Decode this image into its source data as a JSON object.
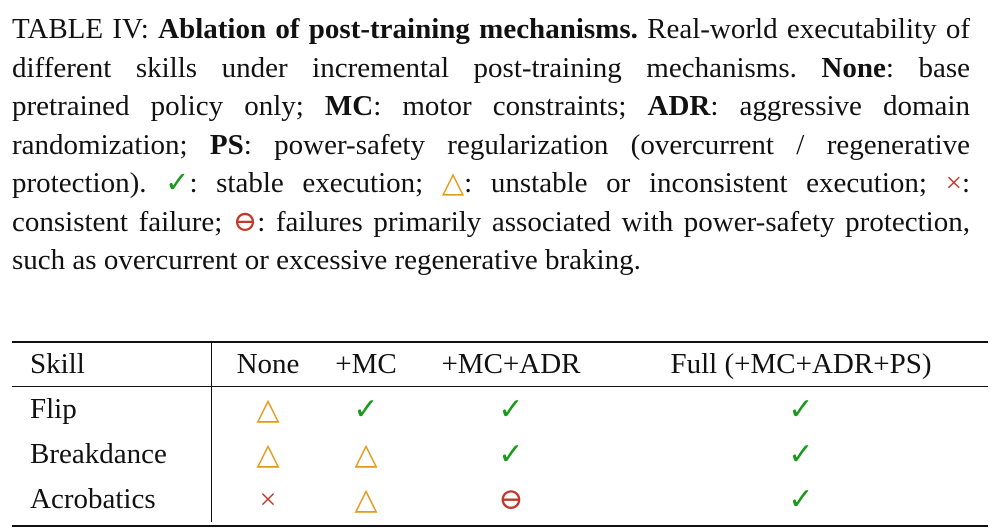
{
  "caption": {
    "label": "TABLE IV:",
    "title": "Ablation of post-training mechanisms.",
    "t1": " Real-world executability of different skills under incremental post-training mechanisms. ",
    "none_abbr": "None",
    "t2": ": base pretrained policy only; ",
    "mc_abbr": "MC",
    "t3": ": motor constraints; ",
    "adr_abbr": "ADR",
    "t4": ": aggressive domain randomization; ",
    "ps_abbr": "PS",
    "t5": ": power-safety regularization (overcurrent / regenerative protection). ",
    "t6": ": stable execution; ",
    "t7": ": unstable or inconsistent execution; ",
    "t8": ": consistent failure; ",
    "t9": ": failures primarily associated with power-safety protection, such as overcurrent or excessive regenerative braking."
  },
  "symbols": {
    "stable": "✓",
    "unstable": "△",
    "failure": "×",
    "power": "⊖"
  },
  "colors": {
    "stable": "#1a9a1a",
    "unstable": "#e39a1a",
    "failure": "#c0392b",
    "power": "#c0392b"
  },
  "table": {
    "headers": [
      "Skill",
      "None",
      "+MC",
      "+MC+ADR",
      "Full (+MC+ADR+PS)"
    ],
    "rows": [
      {
        "skill": "Flip",
        "none": "△",
        "mc": "✓",
        "mcadr": "✓",
        "full": "✓"
      },
      {
        "skill": "Breakdance",
        "none": "△",
        "mc": "△",
        "mcadr": "✓",
        "full": "✓"
      },
      {
        "skill": "Acrobatics",
        "none": "×",
        "mc": "△",
        "mcadr": "⊖",
        "full": "✓"
      }
    ]
  }
}
